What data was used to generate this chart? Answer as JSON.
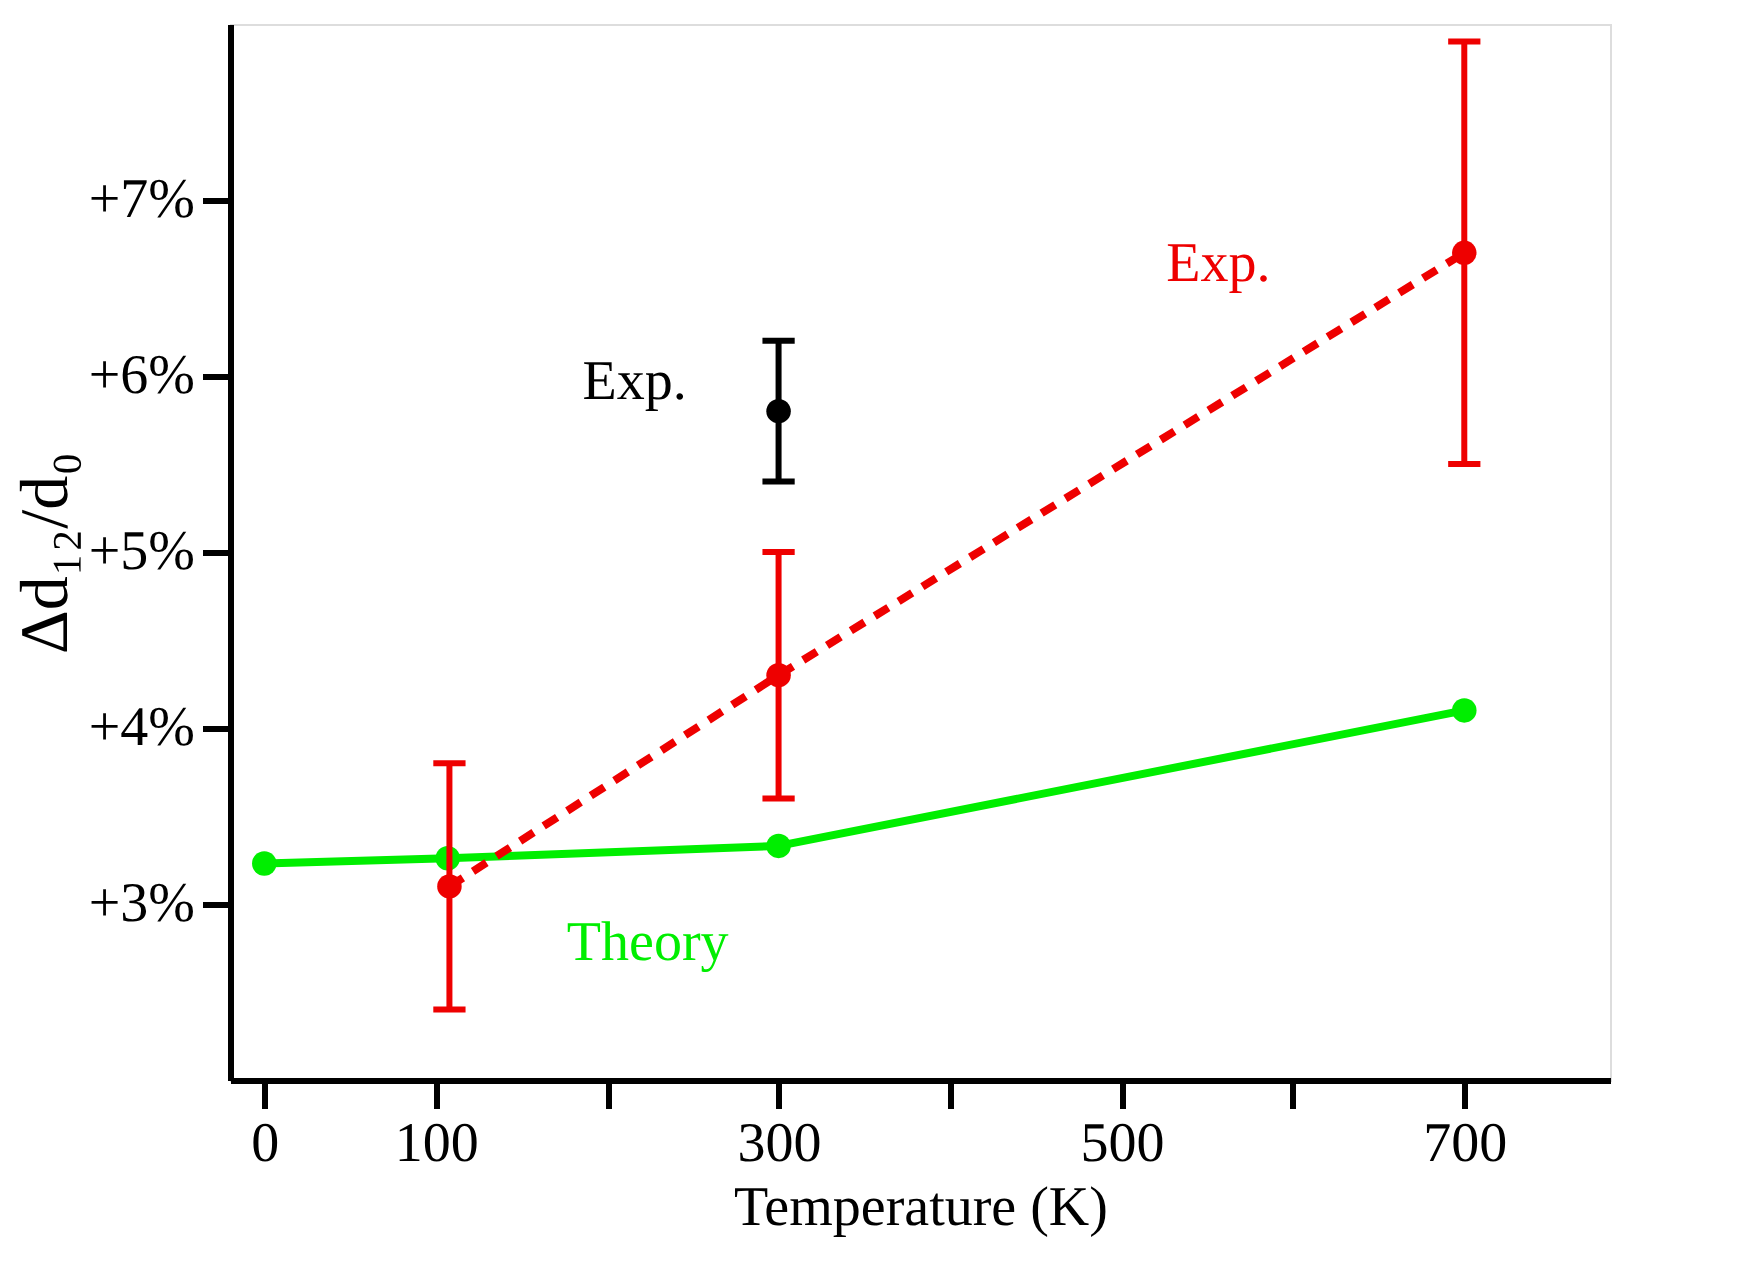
{
  "chart_data": {
    "type": "line",
    "xlabel": "Temperature (K)",
    "ylabel": "Δd₁₂/d₀",
    "series": [
      {
        "name": "Theory",
        "color": "#00ee00",
        "x": [
          0,
          107,
          300,
          700
        ],
        "values": [
          3.23,
          3.26,
          3.33,
          4.1
        ],
        "marker": "circle",
        "line_style": "solid"
      },
      {
        "name": "Exp.",
        "color": "#ee0000",
        "x": [
          108,
          300,
          700
        ],
        "values": [
          3.1,
          4.3,
          6.7
        ],
        "errors": [
          [
            2.4,
            3.8
          ],
          [
            3.6,
            5.0
          ],
          [
            5.5,
            7.9
          ]
        ],
        "marker": "circle",
        "line_style": "dashed"
      },
      {
        "type": "scatter",
        "name": "Exp.",
        "color": "#000000",
        "x": [
          300
        ],
        "values": [
          5.8
        ],
        "errors": [
          [
            5.4,
            6.2
          ]
        ],
        "marker": "circle"
      }
    ],
    "xlim": [
      -20,
      785
    ],
    "xticks": [
      0,
      100,
      {
        "value": 200,
        "label": null
      },
      300,
      {
        "value": 400,
        "label": null
      },
      500,
      {
        "value": 600,
        "label": null
      },
      700
    ],
    "ylim": [
      2.0,
      8.0
    ],
    "yticks": [
      {
        "value": 3,
        "label": "+3%"
      },
      {
        "value": 4,
        "label": "+4%"
      },
      {
        "value": 5,
        "label": "+5%"
      },
      {
        "value": 6,
        "label": "+6%"
      },
      {
        "value": 7,
        "label": "+7%"
      }
    ],
    "grid": false
  }
}
